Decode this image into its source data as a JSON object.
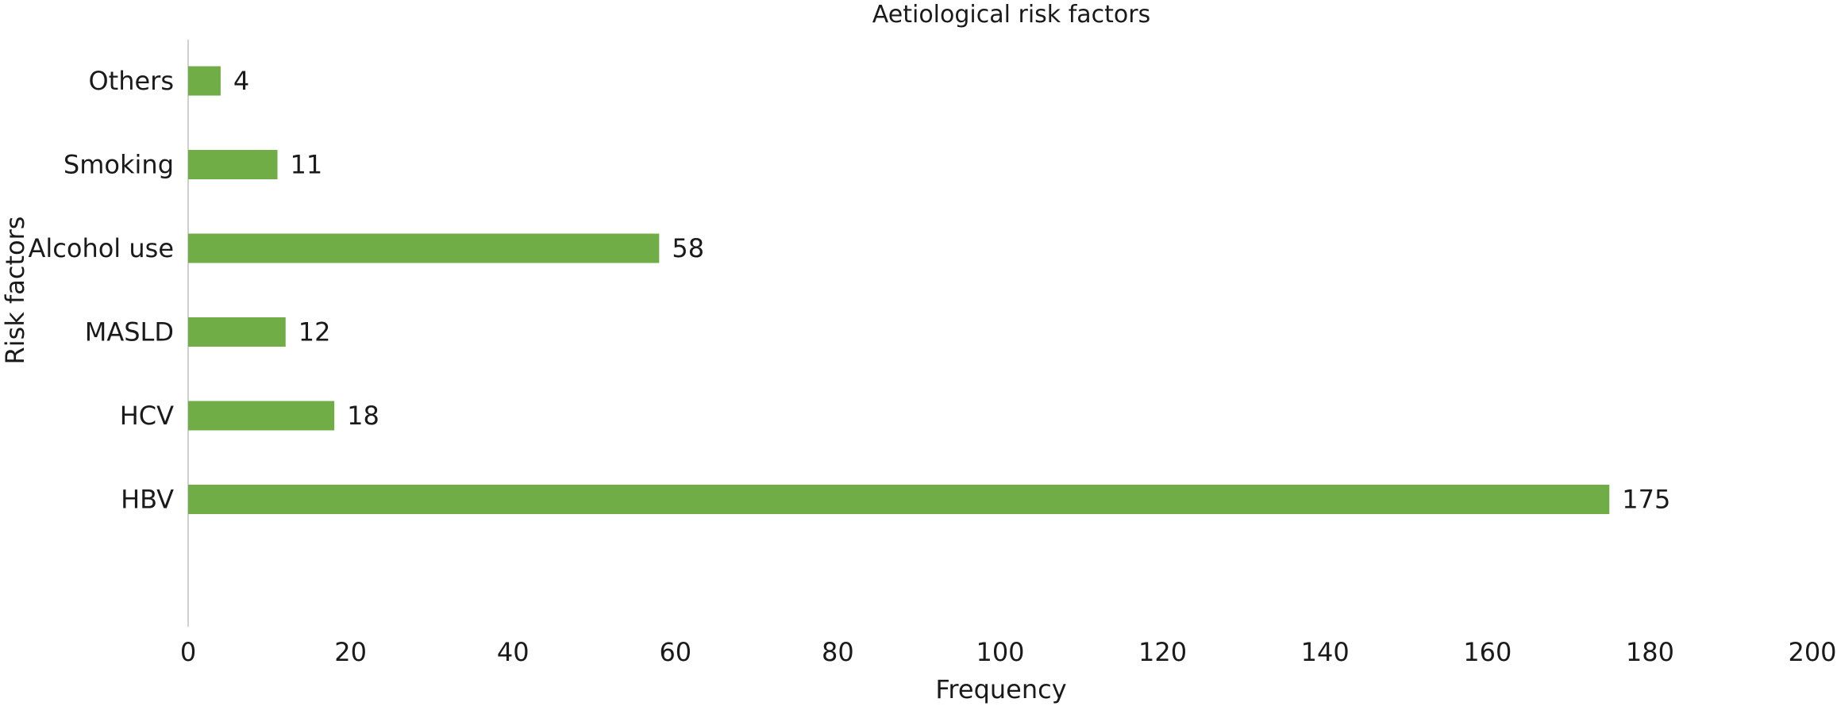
{
  "chart_data": {
    "type": "bar",
    "orientation": "horizontal",
    "title": "Aetiological risk factors",
    "xlabel": "Frequency",
    "ylabel": "Risk factors",
    "categories": [
      "Others",
      "Smoking",
      "Alcohol use",
      "MASLD",
      "HCV",
      "HBV"
    ],
    "values": [
      4,
      11,
      58,
      12,
      18,
      175
    ],
    "data_labels": [
      "4",
      "11",
      "58",
      "12",
      "18",
      "175"
    ],
    "xlim": [
      0,
      200
    ],
    "xticks": [
      0,
      20,
      40,
      60,
      80,
      100,
      120,
      140,
      160,
      180,
      200
    ],
    "grid": false,
    "legend": "none",
    "bar_color": "#70AD47"
  }
}
